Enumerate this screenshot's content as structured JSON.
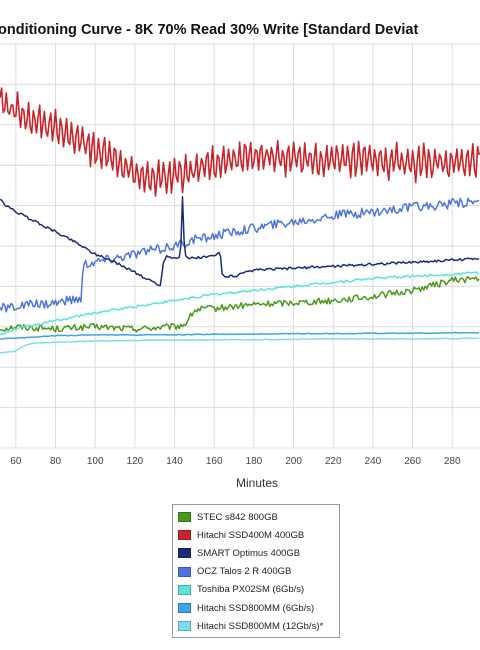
{
  "chart_data": {
    "type": "line",
    "title": "onditioning Curve - 8K 70% Read 30% Write [Standard Deviat",
    "xlabel": "Minutes",
    "x_ticks": [
      60,
      80,
      100,
      120,
      140,
      160,
      180,
      200,
      220,
      240,
      260,
      280
    ],
    "xlim": [
      52,
      294
    ],
    "ylim": [
      0,
      10
    ],
    "grid": true,
    "legend_position": "bottom-center",
    "series": [
      {
        "name": "STEC s842 800GB",
        "color": "#4a9a1a",
        "x": [
          52,
          60,
          80,
          100,
          120,
          140,
          145,
          150,
          155,
          160,
          180,
          200,
          220,
          240,
          260,
          280,
          294
        ],
        "y": [
          2.95,
          3.0,
          2.95,
          3.0,
          2.95,
          3.0,
          3.05,
          3.4,
          3.45,
          3.45,
          3.55,
          3.6,
          3.65,
          3.75,
          3.9,
          4.15,
          4.2
        ],
        "noise": 0.08
      },
      {
        "name": "Hitachi SSD400M 400GB",
        "color": "#c8252b",
        "x": [
          52,
          60,
          70,
          80,
          90,
          100,
          110,
          120,
          130,
          140,
          150,
          160,
          170,
          180,
          200,
          220,
          240,
          260,
          280,
          294
        ],
        "y": [
          8.6,
          8.35,
          8.1,
          7.9,
          7.65,
          7.4,
          7.15,
          6.85,
          6.65,
          6.75,
          6.9,
          7.05,
          7.15,
          7.2,
          7.15,
          7.1,
          7.1,
          7.05,
          7.05,
          7.1
        ],
        "noise": 0.35
      },
      {
        "name": "SMART Optimus 400GB",
        "color": "#1c2b7a",
        "x": [
          52,
          55,
          60,
          70,
          80,
          90,
          100,
          110,
          120,
          125,
          130,
          133,
          134,
          136,
          140,
          143,
          144,
          145,
          146,
          148,
          150,
          160,
          163,
          164,
          166,
          170,
          180,
          200,
          220,
          240,
          260,
          280,
          294
        ],
        "y": [
          6.15,
          6.0,
          5.85,
          5.6,
          5.35,
          5.1,
          4.8,
          4.6,
          4.35,
          4.2,
          4.1,
          4.0,
          4.55,
          4.75,
          4.7,
          4.75,
          6.2,
          4.85,
          4.7,
          4.7,
          4.7,
          4.75,
          4.85,
          4.3,
          4.25,
          4.25,
          4.4,
          4.45,
          4.5,
          4.55,
          4.6,
          4.65,
          4.7
        ],
        "noise": 0.03
      },
      {
        "name": "OCZ Talos 2 R 400GB",
        "color": "#4f74e0",
        "x": [
          52,
          60,
          80,
          93,
          94,
          100,
          110,
          120,
          130,
          140,
          150,
          160,
          180,
          200,
          220,
          240,
          260,
          280,
          294
        ],
        "y": [
          3.45,
          3.5,
          3.6,
          3.7,
          4.55,
          4.6,
          4.7,
          4.8,
          4.9,
          5.0,
          5.15,
          5.25,
          5.45,
          5.6,
          5.75,
          5.85,
          5.95,
          6.05,
          6.1
        ],
        "noise": 0.12
      },
      {
        "name": "Toshiba PX02SM (6Gb/s)",
        "color": "#5fe3d8",
        "x": [
          52,
          60,
          70,
          80,
          100,
          120,
          140,
          160,
          180,
          200,
          220,
          240,
          260,
          280,
          294
        ],
        "y": [
          2.8,
          2.95,
          3.05,
          3.15,
          3.35,
          3.5,
          3.65,
          3.8,
          3.9,
          4.0,
          4.1,
          4.2,
          4.25,
          4.3,
          4.35
        ],
        "noise": 0.03
      },
      {
        "name": "Hitachi SSD800MM (6Gb/s)",
        "color": "#3fa5ea",
        "x": [
          52,
          60,
          70,
          80,
          100,
          120,
          140,
          160,
          180,
          200,
          220,
          240,
          260,
          280,
          294
        ],
        "y": [
          2.7,
          2.72,
          2.75,
          2.78,
          2.8,
          2.8,
          2.8,
          2.82,
          2.82,
          2.83,
          2.83,
          2.84,
          2.84,
          2.85,
          2.85
        ],
        "noise": 0.01
      },
      {
        "name": "Hitachi SSD800MM (12Gb/s)*",
        "color": "#7fdcef",
        "x": [
          52,
          60,
          65,
          70,
          80,
          100,
          120,
          140,
          160,
          180,
          200,
          220,
          240,
          260,
          280,
          294
        ],
        "y": [
          2.35,
          2.4,
          2.55,
          2.6,
          2.62,
          2.65,
          2.66,
          2.67,
          2.68,
          2.68,
          2.69,
          2.7,
          2.7,
          2.7,
          2.71,
          2.72
        ],
        "noise": 0.01
      }
    ]
  }
}
